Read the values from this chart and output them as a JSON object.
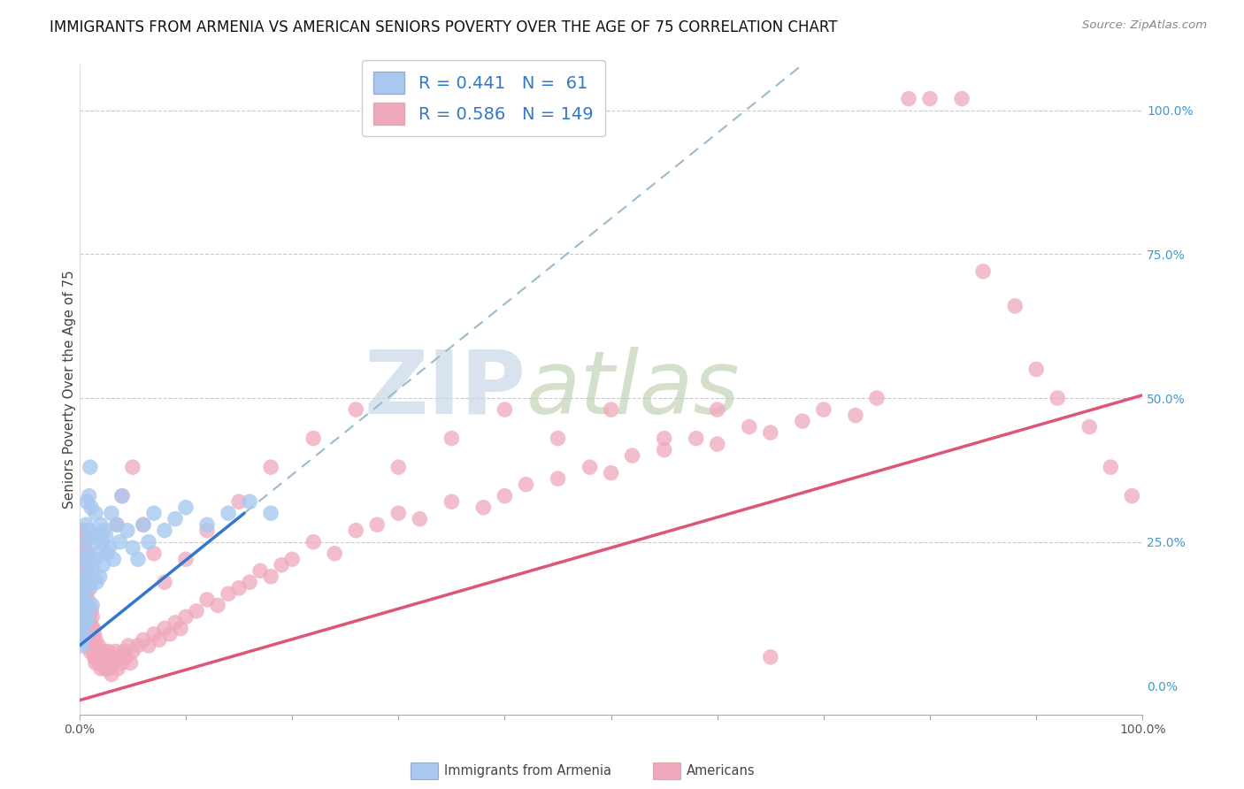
{
  "title": "IMMIGRANTS FROM ARMENIA VS AMERICAN SENIORS POVERTY OVER THE AGE OF 75 CORRELATION CHART",
  "source": "Source: ZipAtlas.com",
  "ylabel": "Seniors Poverty Over the Age of 75",
  "legend_labels": [
    "Immigrants from Armenia",
    "Americans"
  ],
  "r_armenia": 0.441,
  "n_armenia": 61,
  "r_americans": 0.586,
  "n_americans": 149,
  "blue_scatter_color": "#a8c8f0",
  "pink_scatter_color": "#f0a8bc",
  "blue_line_color": "#3377cc",
  "pink_line_color": "#dd5577",
  "dashed_line_color": "#99bbcc",
  "watermark_zip_color": "#c8d8e8",
  "watermark_atlas_color": "#b8ccaa",
  "xlim": [
    0.0,
    1.0
  ],
  "ylim": [
    -0.05,
    1.08
  ],
  "yticks": [
    0.0,
    0.25,
    0.5,
    0.75,
    1.0
  ],
  "ytick_labels": [
    "0.0%",
    "25.0%",
    "50.0%",
    "75.0%",
    "100.0%"
  ],
  "blue_line_x0": 0.0,
  "blue_line_x1": 0.155,
  "blue_line_y0": 0.07,
  "blue_line_y1": 0.3,
  "pink_line_x0": 0.0,
  "pink_line_x1": 1.0,
  "pink_line_y0": -0.025,
  "pink_line_y1": 0.505,
  "title_fontsize": 12,
  "axis_fontsize": 11,
  "tick_fontsize": 10,
  "legend_fontsize": 14,
  "blue_scatter_x": [
    0.001,
    0.002,
    0.002,
    0.003,
    0.003,
    0.004,
    0.004,
    0.004,
    0.005,
    0.005,
    0.005,
    0.006,
    0.006,
    0.006,
    0.007,
    0.007,
    0.007,
    0.008,
    0.008,
    0.008,
    0.009,
    0.009,
    0.01,
    0.01,
    0.011,
    0.011,
    0.012,
    0.012,
    0.013,
    0.014,
    0.015,
    0.015,
    0.016,
    0.017,
    0.018,
    0.019,
    0.02,
    0.021,
    0.022,
    0.023,
    0.025,
    0.026,
    0.028,
    0.03,
    0.032,
    0.035,
    0.038,
    0.04,
    0.045,
    0.05,
    0.055,
    0.06,
    0.065,
    0.07,
    0.08,
    0.09,
    0.1,
    0.12,
    0.14,
    0.16,
    0.18
  ],
  "blue_scatter_y": [
    0.08,
    0.12,
    0.07,
    0.15,
    0.1,
    0.18,
    0.13,
    0.22,
    0.09,
    0.16,
    0.25,
    0.11,
    0.19,
    0.28,
    0.14,
    0.21,
    0.32,
    0.12,
    0.23,
    0.17,
    0.27,
    0.33,
    0.38,
    0.22,
    0.31,
    0.18,
    0.26,
    0.14,
    0.2,
    0.25,
    0.22,
    0.3,
    0.18,
    0.26,
    0.23,
    0.19,
    0.28,
    0.25,
    0.21,
    0.27,
    0.26,
    0.23,
    0.24,
    0.3,
    0.22,
    0.28,
    0.25,
    0.33,
    0.27,
    0.24,
    0.22,
    0.28,
    0.25,
    0.3,
    0.27,
    0.29,
    0.31,
    0.28,
    0.3,
    0.32,
    0.3
  ],
  "pink_scatter_x": [
    0.001,
    0.001,
    0.002,
    0.002,
    0.002,
    0.003,
    0.003,
    0.003,
    0.003,
    0.004,
    0.004,
    0.004,
    0.005,
    0.005,
    0.005,
    0.005,
    0.006,
    0.006,
    0.006,
    0.007,
    0.007,
    0.007,
    0.007,
    0.008,
    0.008,
    0.008,
    0.009,
    0.009,
    0.01,
    0.01,
    0.01,
    0.011,
    0.011,
    0.012,
    0.012,
    0.013,
    0.013,
    0.014,
    0.014,
    0.015,
    0.015,
    0.016,
    0.017,
    0.018,
    0.018,
    0.019,
    0.02,
    0.021,
    0.022,
    0.023,
    0.024,
    0.025,
    0.026,
    0.027,
    0.028,
    0.03,
    0.032,
    0.034,
    0.036,
    0.038,
    0.04,
    0.042,
    0.044,
    0.046,
    0.048,
    0.05,
    0.055,
    0.06,
    0.065,
    0.07,
    0.075,
    0.08,
    0.085,
    0.09,
    0.095,
    0.1,
    0.11,
    0.12,
    0.13,
    0.14,
    0.15,
    0.16,
    0.17,
    0.18,
    0.19,
    0.2,
    0.22,
    0.24,
    0.26,
    0.28,
    0.3,
    0.32,
    0.35,
    0.38,
    0.4,
    0.42,
    0.45,
    0.48,
    0.5,
    0.52,
    0.55,
    0.58,
    0.6,
    0.63,
    0.65,
    0.68,
    0.7,
    0.73,
    0.75,
    0.78,
    0.8,
    0.83,
    0.85,
    0.88,
    0.9,
    0.92,
    0.95,
    0.97,
    0.99,
    0.003,
    0.005,
    0.007,
    0.009,
    0.012,
    0.015,
    0.018,
    0.022,
    0.026,
    0.03,
    0.035,
    0.04,
    0.05,
    0.06,
    0.07,
    0.08,
    0.1,
    0.12,
    0.15,
    0.18,
    0.22,
    0.26,
    0.3,
    0.35,
    0.4,
    0.45,
    0.5,
    0.55,
    0.6,
    0.65
  ],
  "pink_scatter_y": [
    0.19,
    0.23,
    0.16,
    0.21,
    0.26,
    0.14,
    0.18,
    0.22,
    0.27,
    0.12,
    0.17,
    0.24,
    0.09,
    0.15,
    0.2,
    0.25,
    0.11,
    0.16,
    0.21,
    0.08,
    0.13,
    0.18,
    0.23,
    0.1,
    0.15,
    0.2,
    0.07,
    0.12,
    0.06,
    0.11,
    0.17,
    0.08,
    0.13,
    0.07,
    0.12,
    0.06,
    0.1,
    0.05,
    0.09,
    0.04,
    0.08,
    0.05,
    0.06,
    0.04,
    0.07,
    0.05,
    0.03,
    0.05,
    0.04,
    0.06,
    0.03,
    0.05,
    0.04,
    0.06,
    0.03,
    0.05,
    0.04,
    0.06,
    0.03,
    0.05,
    0.04,
    0.06,
    0.05,
    0.07,
    0.04,
    0.06,
    0.07,
    0.08,
    0.07,
    0.09,
    0.08,
    0.1,
    0.09,
    0.11,
    0.1,
    0.12,
    0.13,
    0.15,
    0.14,
    0.16,
    0.17,
    0.18,
    0.2,
    0.19,
    0.21,
    0.22,
    0.25,
    0.23,
    0.27,
    0.28,
    0.3,
    0.29,
    0.32,
    0.31,
    0.33,
    0.35,
    0.36,
    0.38,
    0.37,
    0.4,
    0.41,
    0.43,
    0.42,
    0.45,
    0.44,
    0.46,
    0.48,
    0.47,
    0.5,
    1.02,
    1.02,
    1.02,
    0.72,
    0.66,
    0.55,
    0.5,
    0.45,
    0.38,
    0.33,
    0.27,
    0.23,
    0.18,
    0.14,
    0.1,
    0.07,
    0.05,
    0.04,
    0.03,
    0.02,
    0.28,
    0.33,
    0.38,
    0.28,
    0.23,
    0.18,
    0.22,
    0.27,
    0.32,
    0.38,
    0.43,
    0.48,
    0.38,
    0.43,
    0.48,
    0.43,
    0.48,
    0.43,
    0.48,
    0.05
  ]
}
